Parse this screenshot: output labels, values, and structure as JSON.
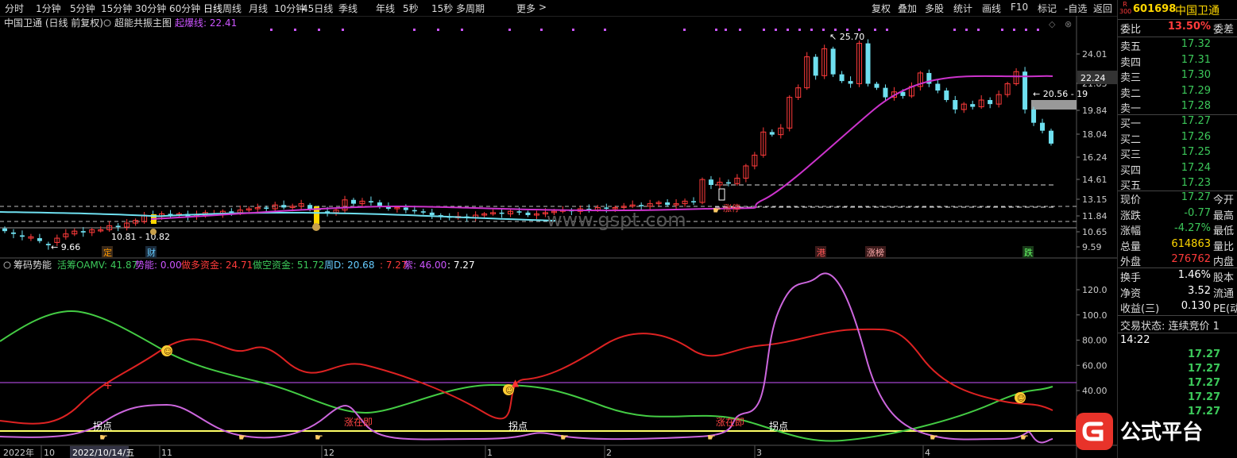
{
  "toolbar": {
    "periods": [
      "分时",
      "1分钟",
      "5分钟",
      "15分钟",
      "30分钟",
      "60分钟",
      "日线",
      "周线",
      "月线",
      "10分钟",
      "45日线",
      "季线",
      "年线",
      "5秒",
      "15秒",
      "多周期",
      "更多"
    ],
    "more_arrow": ">",
    "right": [
      "复权",
      "叠加",
      "多股",
      "统计",
      "画线",
      "F10",
      "标记",
      "-自选",
      "返回"
    ]
  },
  "main_chart": {
    "title": "中国卫通 (日线 前复权)",
    "indicator": "超能共振主图",
    "line_label": "起爆线: 22.41",
    "y_ticks": [
      "24.01",
      "22.24",
      "21.83",
      "19.84",
      "18.04",
      "16.24",
      "14.61",
      "13.15",
      "11.84",
      "10.65",
      "9.59"
    ],
    "current_price_tag": "22.24",
    "annotations": {
      "high": "25.70",
      "low": "9.66",
      "range_left": "10.81 - 10.82",
      "range_right": "20.56 - 19"
    },
    "event_labels": [
      "定",
      "财",
      "港",
      "涨榜",
      "跌"
    ],
    "signal_label": "涨停",
    "watermark": "www.gspt.com"
  },
  "sub_chart": {
    "name": "筹码势能",
    "legend": [
      {
        "text": "活筹OAMV: 41.87",
        "color": "#3cc85a"
      },
      {
        "text": "势能: 0.00",
        "color": "#cc55ff"
      },
      {
        "text": "做多资金: 24.71",
        "color": "#ff3b3b"
      },
      {
        "text": "做空资金: 51.72",
        "color": "#3cc85a"
      },
      {
        "text": "周D: 20.68",
        "color": "#66ccff"
      },
      {
        "text": ": 7.27",
        "color": "#ff3b3b"
      },
      {
        "text": "紫: 46.00",
        "color": "#cc55ff"
      },
      {
        "text": ": 7.27",
        "color": "#ffffff"
      }
    ],
    "y_ticks": [
      "120.0",
      "100.0",
      "80.00",
      "60.00",
      "40.00"
    ],
    "labels": [
      "拐点",
      "涨在即",
      "拐点",
      "涨在即",
      "拐点"
    ]
  },
  "x_axis": {
    "labels": [
      "2022年",
      "10",
      "2022/10/14/五",
      "11",
      "12",
      "1",
      "2",
      "3",
      "4"
    ]
  },
  "quote_panel": {
    "badge_top": "R",
    "badge_bottom": "300",
    "code": "601698",
    "name": "中国卫通",
    "weibi_label": "委比",
    "weibi_value": "13.50%",
    "weicha_label": "委差",
    "asks": [
      {
        "label": "卖五",
        "price": "17.32"
      },
      {
        "label": "卖四",
        "price": "17.31"
      },
      {
        "label": "卖三",
        "price": "17.30"
      },
      {
        "label": "卖二",
        "price": "17.29"
      },
      {
        "label": "卖一",
        "price": "17.28"
      }
    ],
    "bids": [
      {
        "label": "买一",
        "price": "17.27"
      },
      {
        "label": "买二",
        "price": "17.26"
      },
      {
        "label": "买三",
        "price": "17.25"
      },
      {
        "label": "买四",
        "price": "17.24"
      },
      {
        "label": "买五",
        "price": "17.23"
      }
    ],
    "stats": [
      {
        "label": "现价",
        "value": "17.27",
        "color": "#3cc85a",
        "ext": "今开"
      },
      {
        "label": "涨跌",
        "value": "-0.77",
        "color": "#3cc85a",
        "ext": "最高"
      },
      {
        "label": "涨幅",
        "value": "-4.27%",
        "color": "#3cc85a",
        "ext": "最低"
      },
      {
        "label": "总量",
        "value": "614863",
        "color": "#ffd700",
        "ext": "量比"
      },
      {
        "label": "外盘",
        "value": "276762",
        "color": "#ff3b3b",
        "ext": "内盘"
      }
    ],
    "stats2": [
      {
        "label": "换手",
        "value": "1.46%",
        "color": "#ffffff",
        "ext": "股本"
      },
      {
        "label": "净资",
        "value": "3.52",
        "color": "#ffffff",
        "ext": "流通"
      },
      {
        "label": "收益(三)",
        "value": "0.130",
        "color": "#ffffff",
        "ext": "PE(动)"
      }
    ],
    "trade_status": "交易状态: 连续竞价 1",
    "ticks_time": "14:22",
    "ticks": [
      "17.27",
      "17.27",
      "17.27",
      "17.27",
      "17.27"
    ]
  },
  "logo": {
    "text": "公式平台"
  }
}
